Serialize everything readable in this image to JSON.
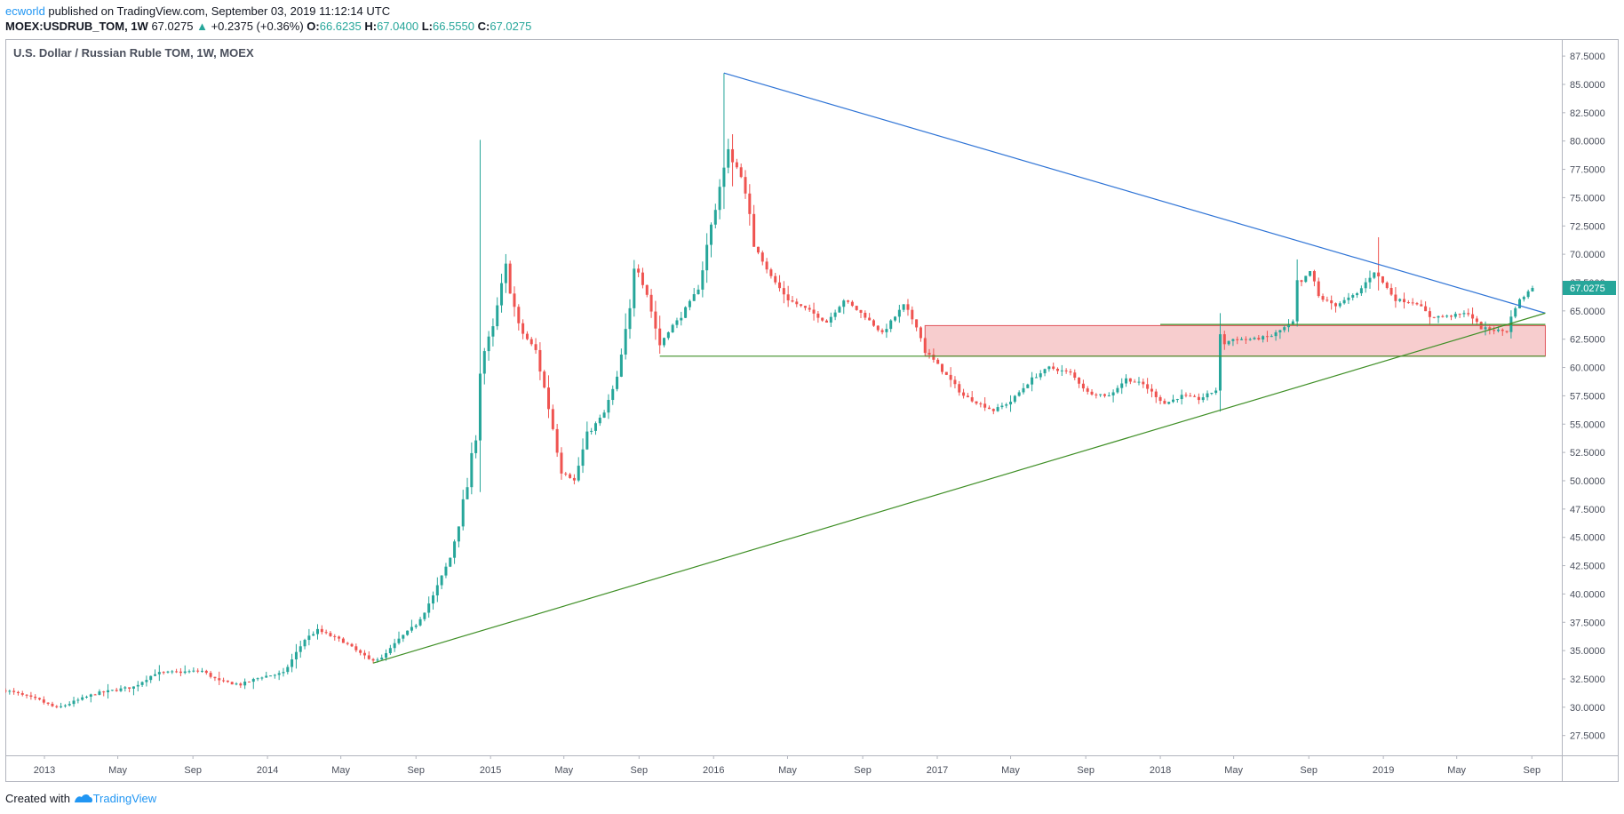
{
  "header": {
    "author": "ecworld",
    "published_text": " published on TradingView.com, September 03, 2019 11:12:14 UTC",
    "symbol": "MOEX:USDRUB_TOM, 1W",
    "last": "67.0275",
    "change_arrow": "▲",
    "change": "+0.2375 (+0.36%)",
    "o_label": "O:",
    "o_value": "66.6235",
    "h_label": "H:",
    "h_value": "67.0400",
    "l_label": "L:",
    "l_value": "66.5550",
    "c_label": "C:",
    "c_value": "67.0275"
  },
  "footer": {
    "created_with": "Created with ",
    "brand": "TradingView"
  },
  "colors": {
    "up": "#26a69a",
    "down": "#ef5350",
    "trendline_down": "#2f74d6",
    "trendline_up": "#3f8f26",
    "zone_fill": "#f6c4c6",
    "zone_border": "#e05258",
    "axis": "#4a4f5c"
  },
  "chart_data": {
    "type": "candlestick",
    "title": "U.S. Dollar / Russian Ruble TOM, 1W, MOEX",
    "last_price": 67.0275,
    "ylim": [
      25.75,
      89.0
    ],
    "y_ticks": [
      "27.5000",
      "30.0000",
      "32.5000",
      "35.0000",
      "37.5000",
      "40.0000",
      "42.5000",
      "45.0000",
      "47.5000",
      "50.0000",
      "52.5000",
      "55.0000",
      "57.5000",
      "60.0000",
      "62.5000",
      "65.0000",
      "67.5000",
      "70.0000",
      "72.5000",
      "75.0000",
      "77.5000",
      "80.0000",
      "82.5000",
      "85.0000",
      "87.5000"
    ],
    "x_ticks": [
      {
        "label": "2013",
        "date": "2013-01-01"
      },
      {
        "label": "May",
        "date": "2013-05-01"
      },
      {
        "label": "Sep",
        "date": "2013-09-01"
      },
      {
        "label": "2014",
        "date": "2014-01-01"
      },
      {
        "label": "May",
        "date": "2014-05-01"
      },
      {
        "label": "Sep",
        "date": "2014-09-01"
      },
      {
        "label": "2015",
        "date": "2015-01-01"
      },
      {
        "label": "May",
        "date": "2015-05-01"
      },
      {
        "label": "Sep",
        "date": "2015-09-01"
      },
      {
        "label": "2016",
        "date": "2016-01-01"
      },
      {
        "label": "May",
        "date": "2016-05-01"
      },
      {
        "label": "Sep",
        "date": "2016-09-01"
      },
      {
        "label": "2017",
        "date": "2017-01-01"
      },
      {
        "label": "May",
        "date": "2017-05-01"
      },
      {
        "label": "Sep",
        "date": "2017-09-01"
      },
      {
        "label": "2018",
        "date": "2018-01-01"
      },
      {
        "label": "May",
        "date": "2018-05-01"
      },
      {
        "label": "Sep",
        "date": "2018-09-01"
      },
      {
        "label": "2019",
        "date": "2019-01-01"
      },
      {
        "label": "May",
        "date": "2019-05-01"
      },
      {
        "label": "Sep",
        "date": "2019-09-01"
      }
    ],
    "x_range": [
      "2012-10-29",
      "2019-10-20"
    ],
    "candles_interval": "1W",
    "candles_start": "2012-10-29",
    "close_path": [
      [
        "2012-10-29",
        31.5
      ],
      [
        "2012-12-24",
        30.6
      ],
      [
        "2013-01-21",
        29.9
      ],
      [
        "2013-03-25",
        31.2
      ],
      [
        "2013-05-27",
        31.8
      ],
      [
        "2013-07-01",
        33.0
      ],
      [
        "2013-09-16",
        33.2
      ],
      [
        "2013-10-14",
        32.3
      ],
      [
        "2013-11-18",
        32.0
      ],
      [
        "2013-12-23",
        32.7
      ],
      [
        "2014-01-27",
        33.0
      ],
      [
        "2014-03-03",
        36.0
      ],
      [
        "2014-03-24",
        36.8
      ],
      [
        "2014-05-05",
        35.8
      ],
      [
        "2014-06-16",
        34.2
      ],
      [
        "2014-07-07",
        34.3
      ],
      [
        "2014-08-04",
        36.0
      ],
      [
        "2014-09-01",
        37.3
      ],
      [
        "2014-09-29",
        39.8
      ],
      [
        "2014-10-27",
        43.2
      ],
      [
        "2014-11-24",
        49.5
      ],
      [
        "2014-12-08",
        54.0
      ],
      [
        "2014-12-15",
        60.5
      ],
      [
        "2015-01-05",
        63.5
      ],
      [
        "2015-01-26",
        68.9
      ],
      [
        "2015-02-16",
        63.5
      ],
      [
        "2015-03-16",
        61.5
      ],
      [
        "2015-04-06",
        56.5
      ],
      [
        "2015-04-27",
        51.0
      ],
      [
        "2015-05-18",
        50.0
      ],
      [
        "2015-06-08",
        54.0
      ],
      [
        "2015-07-06",
        56.0
      ],
      [
        "2015-07-27",
        59.0
      ],
      [
        "2015-08-17",
        65.0
      ],
      [
        "2015-08-24",
        69.5
      ],
      [
        "2015-09-14",
        66.5
      ],
      [
        "2015-10-05",
        62.0
      ],
      [
        "2015-10-19",
        63.3
      ],
      [
        "2015-11-09",
        64.5
      ],
      [
        "2015-12-07",
        67.0
      ],
      [
        "2015-12-28",
        72.5
      ],
      [
        "2016-01-11",
        76.0
      ],
      [
        "2016-01-25",
        79.0
      ],
      [
        "2016-02-15",
        77.0
      ],
      [
        "2016-03-07",
        71.0
      ],
      [
        "2016-04-04",
        68.0
      ],
      [
        "2016-05-02",
        66.0
      ],
      [
        "2016-06-06",
        65.0
      ],
      [
        "2016-07-04",
        64.0
      ],
      [
        "2016-08-01",
        66.0
      ],
      [
        "2016-09-05",
        64.5
      ],
      [
        "2016-10-03",
        63.0
      ],
      [
        "2016-11-07",
        65.5
      ],
      [
        "2016-11-28",
        63.7
      ],
      [
        "2016-12-12",
        61.5
      ],
      [
        "2017-01-02",
        60.2
      ],
      [
        "2017-02-13",
        57.5
      ],
      [
        "2017-04-03",
        56.2
      ],
      [
        "2017-05-01",
        57.0
      ],
      [
        "2017-06-05",
        59.0
      ],
      [
        "2017-07-03",
        60.0
      ],
      [
        "2017-08-07",
        59.5
      ],
      [
        "2017-09-04",
        57.8
      ],
      [
        "2017-10-09",
        57.5
      ],
      [
        "2017-11-06",
        59.0
      ],
      [
        "2017-12-04",
        58.5
      ],
      [
        "2018-01-08",
        56.8
      ],
      [
        "2018-02-05",
        57.5
      ],
      [
        "2018-03-05",
        57.2
      ],
      [
        "2018-04-02",
        58.0
      ],
      [
        "2018-04-09",
        62.0
      ],
      [
        "2018-04-30",
        62.5
      ],
      [
        "2018-06-04",
        62.5
      ],
      [
        "2018-07-02",
        62.8
      ],
      [
        "2018-08-06",
        64.0
      ],
      [
        "2018-08-13",
        67.0
      ],
      [
        "2018-09-03",
        68.5
      ],
      [
        "2018-09-17",
        66.2
      ],
      [
        "2018-10-15",
        65.5
      ],
      [
        "2018-11-19",
        66.5
      ],
      [
        "2018-12-17",
        68.5
      ],
      [
        "2018-12-31",
        67.5
      ],
      [
        "2019-01-21",
        66.0
      ],
      [
        "2019-02-25",
        65.7
      ],
      [
        "2019-03-18",
        64.5
      ],
      [
        "2019-04-15",
        64.5
      ],
      [
        "2019-05-20",
        64.8
      ],
      [
        "2019-06-10",
        63.5
      ],
      [
        "2019-07-01",
        63.3
      ],
      [
        "2019-07-22",
        63.2
      ],
      [
        "2019-08-05",
        65.5
      ],
      [
        "2019-08-19",
        66.3
      ],
      [
        "2019-09-02",
        67.0275
      ]
    ],
    "wick_spikes": [
      {
        "date": "2014-12-15",
        "high": 80.1,
        "low": 49.0
      },
      {
        "date": "2016-01-18",
        "high": 86.0,
        "low": 74.0
      },
      {
        "date": "2016-02-01",
        "high": 80.6,
        "low": 76.0
      },
      {
        "date": "2018-12-24",
        "high": 71.5,
        "low": 66.8
      },
      {
        "date": "2018-04-09",
        "high": 64.8,
        "low": 58.0
      }
    ],
    "annotations": {
      "trendline_down": {
        "from": [
          "2016-01-18",
          86.0
        ],
        "to": [
          "2019-09-23",
          64.8
        ]
      },
      "trendline_up": {
        "from": [
          "2014-06-23",
          33.9
        ],
        "to": [
          "2019-09-23",
          64.8
        ]
      },
      "support_line": {
        "from": [
          "2015-10-05",
          61.0
        ],
        "to": [
          "2019-09-23",
          61.0
        ]
      },
      "resistance_line": {
        "from": [
          "2018-01-01",
          63.8
        ],
        "to": [
          "2019-09-23",
          63.8
        ]
      },
      "zone": {
        "from": "2016-12-12",
        "to": "2019-09-23",
        "top": 63.7,
        "bottom": 61.0
      }
    }
  }
}
